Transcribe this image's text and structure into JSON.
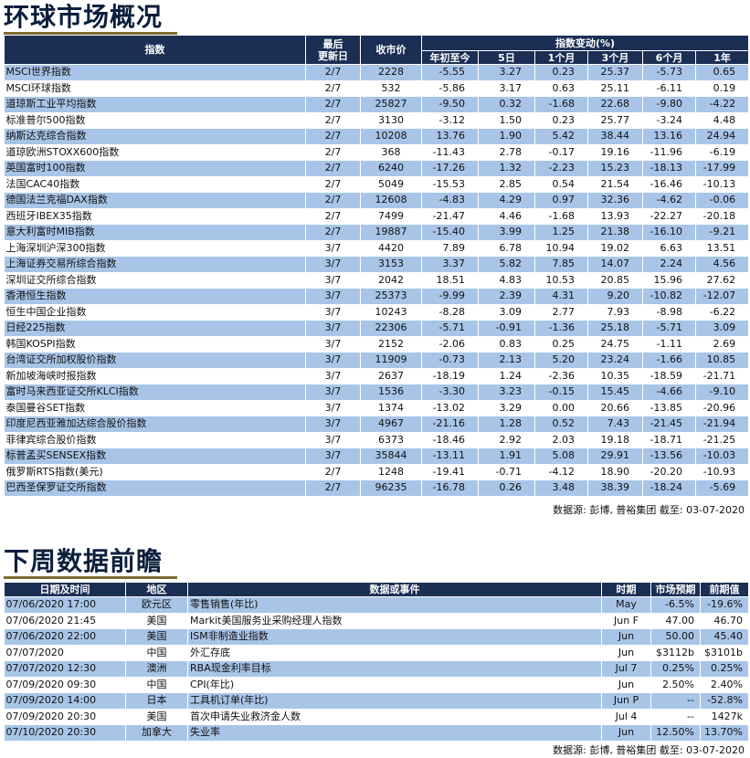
{
  "section1": {
    "title": "环球市场概况",
    "headers": {
      "index": "指数",
      "updated": [
        "最后",
        "更新日"
      ],
      "close": "收市价",
      "change_group": "指数变动(%)",
      "periods": [
        "年初至今",
        "5日",
        "1个月",
        "3个月",
        "6个月",
        "1年"
      ]
    },
    "rows": [
      [
        "MSCI世界指数",
        "2/7",
        "2228",
        "-5.55",
        "3.27",
        "0.23",
        "25.37",
        "-5.73",
        "0.65"
      ],
      [
        "MSCI环球指数",
        "2/7",
        "532",
        "-5.86",
        "3.17",
        "0.63",
        "25.11",
        "-6.11",
        "0.19"
      ],
      [
        "道琼斯工业平均指数",
        "2/7",
        "25827",
        "-9.50",
        "0.32",
        "-1.68",
        "22.68",
        "-9.80",
        "-4.22"
      ],
      [
        "标准普尔500指数",
        "2/7",
        "3130",
        "-3.12",
        "1.50",
        "0.23",
        "25.77",
        "-3.24",
        "4.48"
      ],
      [
        "纳斯达克综合指数",
        "2/7",
        "10208",
        "13.76",
        "1.90",
        "5.42",
        "38.44",
        "13.16",
        "24.94"
      ],
      [
        "道琼欧洲STOXX600指数",
        "2/7",
        "368",
        "-11.43",
        "2.78",
        "-0.17",
        "19.16",
        "-11.96",
        "-6.19"
      ],
      [
        "英国富时100指数",
        "2/7",
        "6240",
        "-17.26",
        "1.32",
        "-2.23",
        "15.23",
        "-18.13",
        "-17.99"
      ],
      [
        "法国CAC40指数",
        "2/7",
        "5049",
        "-15.53",
        "2.85",
        "0.54",
        "21.54",
        "-16.46",
        "-10.13"
      ],
      [
        "德国法兰克福DAX指数",
        "2/7",
        "12608",
        "-4.83",
        "4.29",
        "0.97",
        "32.36",
        "-4.62",
        "-0.06"
      ],
      [
        "西班牙IBEX35指数",
        "2/7",
        "7499",
        "-21.47",
        "4.46",
        "-1.68",
        "13.93",
        "-22.27",
        "-20.18"
      ],
      [
        "意大利富时MIB指数",
        "2/7",
        "19887",
        "-15.40",
        "3.99",
        "1.25",
        "21.38",
        "-16.10",
        "-9.21"
      ],
      [
        "上海深圳沪深300指数",
        "3/7",
        "4420",
        "7.89",
        "6.78",
        "10.94",
        "19.02",
        "6.63",
        "13.51"
      ],
      [
        "上海证券交易所综合指数",
        "3/7",
        "3153",
        "3.37",
        "5.82",
        "7.85",
        "14.07",
        "2.24",
        "4.56"
      ],
      [
        "深圳证交所综合指数",
        "3/7",
        "2042",
        "18.51",
        "4.83",
        "10.53",
        "20.85",
        "15.96",
        "27.62"
      ],
      [
        "香港恒生指数",
        "3/7",
        "25373",
        "-9.99",
        "2.39",
        "4.31",
        "9.20",
        "-10.82",
        "-12.07"
      ],
      [
        "恒生中国企业指数",
        "3/7",
        "10243",
        "-8.28",
        "3.09",
        "2.77",
        "7.93",
        "-8.98",
        "-6.22"
      ],
      [
        "日经225指数",
        "3/7",
        "22306",
        "-5.71",
        "-0.91",
        "-1.36",
        "25.18",
        "-5.71",
        "3.09"
      ],
      [
        "韩国KOSPI指数",
        "3/7",
        "2152",
        "-2.06",
        "0.83",
        "0.25",
        "24.75",
        "-1.11",
        "2.69"
      ],
      [
        "台湾证交所加权股价指数",
        "3/7",
        "11909",
        "-0.73",
        "2.13",
        "5.20",
        "23.24",
        "-1.66",
        "10.85"
      ],
      [
        "新加坡海峡时报指数",
        "3/7",
        "2637",
        "-18.19",
        "1.24",
        "-2.36",
        "10.35",
        "-18.59",
        "-21.71"
      ],
      [
        "富时马来西亚证交所KLCI指数",
        "3/7",
        "1536",
        "-3.30",
        "3.23",
        "-0.15",
        "15.45",
        "-4.66",
        "-9.10"
      ],
      [
        "泰国曼谷SET指数",
        "3/7",
        "1374",
        "-13.02",
        "3.29",
        "0.00",
        "20.66",
        "-13.85",
        "-20.96"
      ],
      [
        "印度尼西亚雅加达综合股价指数",
        "3/7",
        "4967",
        "-21.16",
        "1.28",
        "0.52",
        "7.43",
        "-21.45",
        "-21.94"
      ],
      [
        "菲律宾综合股价指数",
        "3/7",
        "6373",
        "-18.46",
        "2.92",
        "2.03",
        "19.18",
        "-18.71",
        "-21.25"
      ],
      [
        "标普孟买SENSEX指数",
        "3/7",
        "35844",
        "-13.11",
        "1.91",
        "5.08",
        "29.91",
        "-13.56",
        "-10.03"
      ],
      [
        "俄罗斯RTS指数(美元)",
        "2/7",
        "1248",
        "-19.41",
        "-0.71",
        "-4.12",
        "18.90",
        "-20.20",
        "-10.93"
      ],
      [
        "巴西圣保罗证交所指数",
        "2/7",
        "96235",
        "-16.78",
        "0.26",
        "3.48",
        "38.39",
        "-18.24",
        "-5.69"
      ]
    ],
    "source": "数据源: 彭博, 普裕集团 截至: 03-07-2020"
  },
  "section2": {
    "title": "下周数据前瞻",
    "headers": [
      "日期及时间",
      "地区",
      "数据或事件",
      "时期",
      "市场预期",
      "前期值"
    ],
    "rows": [
      [
        "07/06/2020 17:00",
        "欧元区",
        "零售销售(年比)",
        "May",
        "-6.5%",
        "-19.6%"
      ],
      [
        "07/06/2020 21:45",
        "美国",
        "Markit美国服务业采购经理人指数",
        "Jun F",
        "47.00",
        "46.70"
      ],
      [
        "07/06/2020 22:00",
        "美国",
        "ISM非制造业指数",
        "Jun",
        "50.00",
        "45.40"
      ],
      [
        "07/07/2020",
        "中国",
        "外汇存底",
        "Jun",
        "$3112b",
        "$3101b"
      ],
      [
        "07/07/2020 12:30",
        "澳洲",
        "RBA现金利率目标",
        "Jul 7",
        "0.25%",
        "0.25%"
      ],
      [
        "07/09/2020 09:30",
        "中国",
        "CPI(年比)",
        "Jun",
        "2.50%",
        "2.40%"
      ],
      [
        "07/09/2020 14:00",
        "日本",
        "工具机订单(年比)",
        "Jun P",
        "--",
        "-52.8%"
      ],
      [
        "07/09/2020 20:30",
        "美国",
        "首次申请失业救济金人数",
        "Jul 4",
        "--",
        "1427k"
      ],
      [
        "07/10/2020 20:30",
        "加拿大",
        "失业率",
        "Jun",
        "12.50%",
        "13.70%"
      ]
    ],
    "source": "数据源: 彭博, 普裕集团 截至: 03-07-2020"
  }
}
